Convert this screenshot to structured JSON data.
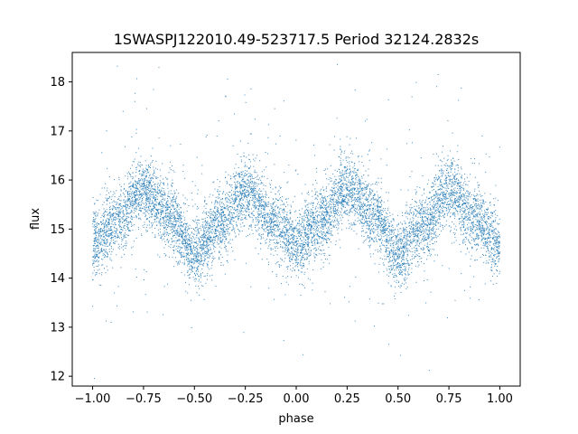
{
  "chart_data": {
    "type": "scatter",
    "title": "1SWASPJ122010.49-523717.5 Period 32124.2832s",
    "xlabel": "phase",
    "ylabel": "flux",
    "xlim": [
      -1.1,
      1.1
    ],
    "ylim": [
      11.8,
      18.6
    ],
    "xticks": [
      -1.0,
      -0.75,
      -0.5,
      -0.25,
      0.0,
      0.25,
      0.5,
      0.75,
      1.0
    ],
    "xtick_labels": [
      "−1.00",
      "−0.75",
      "−0.50",
      "−0.25",
      "0.00",
      "0.25",
      "0.50",
      "0.75",
      "1.00"
    ],
    "yticks": [
      12,
      13,
      14,
      15,
      16,
      17,
      18
    ],
    "ytick_labels": [
      "12",
      "13",
      "14",
      "15",
      "16",
      "17",
      "18"
    ],
    "marker_color": "#1f77b4",
    "grid": false,
    "legend": false,
    "light_curve_envelope": {
      "x": [
        -1.0,
        -0.875,
        -0.75,
        -0.625,
        -0.5,
        -0.375,
        -0.25,
        -0.125,
        0.0,
        0.125,
        0.25,
        0.375,
        0.5,
        0.625,
        0.75,
        0.875,
        1.0
      ],
      "y": [
        14.7,
        15.2,
        15.8,
        15.3,
        14.5,
        15.1,
        15.8,
        15.2,
        14.7,
        15.2,
        15.8,
        15.3,
        14.5,
        15.1,
        15.8,
        15.2,
        14.7
      ],
      "scatter_sigma": 0.35
    },
    "approx_point_count": 9000
  }
}
